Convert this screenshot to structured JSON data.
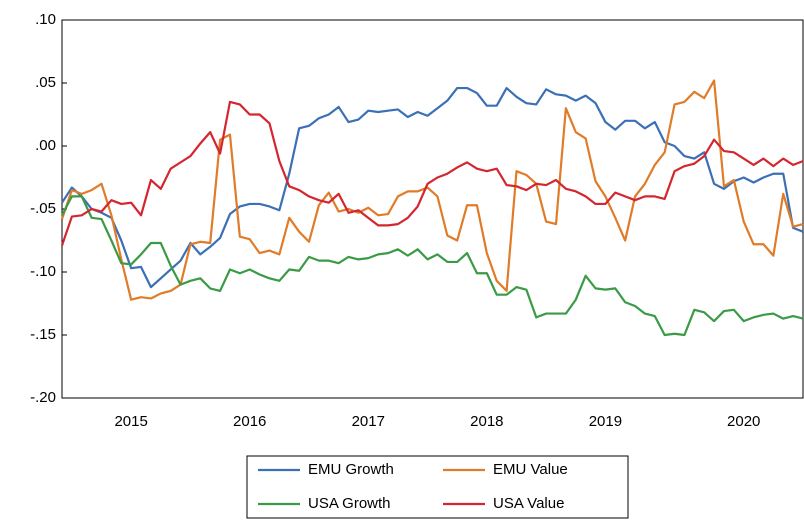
{
  "chart_data": {
    "type": "line",
    "categories": [
      null,
      null,
      null,
      null,
      null,
      null,
      null,
      "2015",
      null,
      null,
      null,
      null,
      null,
      null,
      null,
      null,
      null,
      null,
      null,
      "2016",
      null,
      null,
      null,
      null,
      null,
      null,
      null,
      null,
      null,
      null,
      null,
      "2017",
      null,
      null,
      null,
      null,
      null,
      null,
      null,
      null,
      null,
      null,
      null,
      "2018",
      null,
      null,
      null,
      null,
      null,
      null,
      null,
      null,
      null,
      null,
      null,
      "2019",
      null,
      null,
      null,
      null,
      null,
      null,
      null,
      null,
      null,
      null,
      null,
      null,
      null,
      "2020",
      null,
      null,
      null,
      null,
      null,
      null
    ],
    "series": [
      {
        "name": "EMU Growth",
        "color": "#3b6fb6",
        "values": [
          -0.045,
          -0.033,
          -0.04,
          -0.05,
          -0.053,
          -0.057,
          -0.075,
          -0.097,
          -0.096,
          -0.112,
          -0.105,
          -0.098,
          -0.091,
          -0.077,
          -0.086,
          -0.08,
          -0.073,
          -0.054,
          -0.048,
          -0.046,
          -0.046,
          -0.048,
          -0.051,
          -0.022,
          0.014,
          0.016,
          0.022,
          0.025,
          0.031,
          0.019,
          0.021,
          0.028,
          0.027,
          0.028,
          0.029,
          0.023,
          0.027,
          0.024,
          0.03,
          0.036,
          0.046,
          0.046,
          0.042,
          0.032,
          0.032,
          0.046,
          0.039,
          0.034,
          0.033,
          0.045,
          0.041,
          0.04,
          0.036,
          0.04,
          0.034,
          0.019,
          0.013,
          0.02,
          0.02,
          0.014,
          0.019,
          0.003,
          0.0,
          -0.008,
          -0.01,
          -0.005,
          -0.03,
          -0.034,
          -0.028,
          -0.025,
          -0.029,
          -0.025,
          -0.022,
          -0.022,
          -0.065,
          -0.068
        ]
      },
      {
        "name": "EMU Value",
        "color": "#e07b28",
        "values": [
          -0.058,
          -0.035,
          -0.038,
          -0.035,
          -0.03,
          -0.055,
          -0.09,
          -0.122,
          -0.12,
          -0.121,
          -0.117,
          -0.115,
          -0.11,
          -0.078,
          -0.076,
          -0.077,
          0.005,
          0.009,
          -0.072,
          -0.074,
          -0.085,
          -0.083,
          -0.086,
          -0.057,
          -0.068,
          -0.076,
          -0.047,
          -0.037,
          -0.052,
          -0.05,
          -0.053,
          -0.049,
          -0.055,
          -0.054,
          -0.04,
          -0.036,
          -0.036,
          -0.033,
          -0.04,
          -0.071,
          -0.075,
          -0.047,
          -0.047,
          -0.085,
          -0.107,
          -0.115,
          -0.02,
          -0.023,
          -0.03,
          -0.06,
          -0.062,
          0.03,
          0.011,
          0.006,
          -0.028,
          -0.04,
          -0.057,
          -0.075,
          -0.04,
          -0.03,
          -0.015,
          -0.005,
          0.033,
          0.035,
          0.043,
          0.038,
          0.052,
          -0.032,
          -0.027,
          -0.06,
          -0.078,
          -0.078,
          -0.087,
          -0.038,
          -0.064,
          -0.062
        ]
      },
      {
        "name": "USA Growth",
        "color": "#3a9a45",
        "values": [
          -0.055,
          -0.04,
          -0.04,
          -0.057,
          -0.058,
          -0.075,
          -0.093,
          -0.094,
          -0.086,
          -0.077,
          -0.077,
          -0.095,
          -0.11,
          -0.107,
          -0.105,
          -0.113,
          -0.115,
          -0.098,
          -0.101,
          -0.098,
          -0.102,
          -0.105,
          -0.107,
          -0.098,
          -0.099,
          -0.088,
          -0.091,
          -0.091,
          -0.093,
          -0.088,
          -0.09,
          -0.089,
          -0.086,
          -0.085,
          -0.082,
          -0.087,
          -0.082,
          -0.09,
          -0.086,
          -0.092,
          -0.092,
          -0.085,
          -0.101,
          -0.101,
          -0.118,
          -0.118,
          -0.112,
          -0.114,
          -0.136,
          -0.133,
          -0.133,
          -0.133,
          -0.122,
          -0.103,
          -0.113,
          -0.114,
          -0.113,
          -0.124,
          -0.127,
          -0.133,
          -0.135,
          -0.15,
          -0.149,
          -0.15,
          -0.13,
          -0.132,
          -0.139,
          -0.131,
          -0.13,
          -0.139,
          -0.136,
          -0.134,
          -0.133,
          -0.137,
          -0.135,
          -0.137
        ]
      },
      {
        "name": "USA Value",
        "color": "#d4262e",
        "values": [
          -0.079,
          -0.056,
          -0.055,
          -0.05,
          -0.052,
          -0.043,
          -0.046,
          -0.045,
          -0.055,
          -0.027,
          -0.034,
          -0.018,
          -0.013,
          -0.008,
          0.002,
          0.011,
          -0.006,
          0.035,
          0.033,
          0.025,
          0.025,
          0.018,
          -0.012,
          -0.032,
          -0.035,
          -0.04,
          -0.043,
          -0.045,
          -0.038,
          -0.053,
          -0.051,
          -0.057,
          -0.063,
          -0.063,
          -0.062,
          -0.057,
          -0.048,
          -0.03,
          -0.025,
          -0.022,
          -0.017,
          -0.013,
          -0.018,
          -0.02,
          -0.018,
          -0.031,
          -0.032,
          -0.035,
          -0.03,
          -0.031,
          -0.027,
          -0.034,
          -0.036,
          -0.04,
          -0.046,
          -0.046,
          -0.037,
          -0.04,
          -0.043,
          -0.04,
          -0.04,
          -0.042,
          -0.02,
          -0.016,
          -0.014,
          -0.008,
          0.005,
          -0.004,
          -0.005,
          -0.01,
          -0.015,
          -0.01,
          -0.016,
          -0.01,
          -0.015,
          -0.012
        ]
      }
    ],
    "ylim": [
      -0.2,
      0.1
    ],
    "yticks": [
      {
        "value": -0.2,
        "label": "-.20"
      },
      {
        "value": -0.15,
        "label": "-.15"
      },
      {
        "value": -0.1,
        "label": "-.10"
      },
      {
        "value": -0.05,
        "label": "-.05"
      },
      {
        "value": 0,
        "label": ".00"
      },
      {
        "value": 0.05,
        "label": ".05"
      },
      {
        "value": 0.1,
        "label": ".10"
      }
    ],
    "grid": false
  }
}
